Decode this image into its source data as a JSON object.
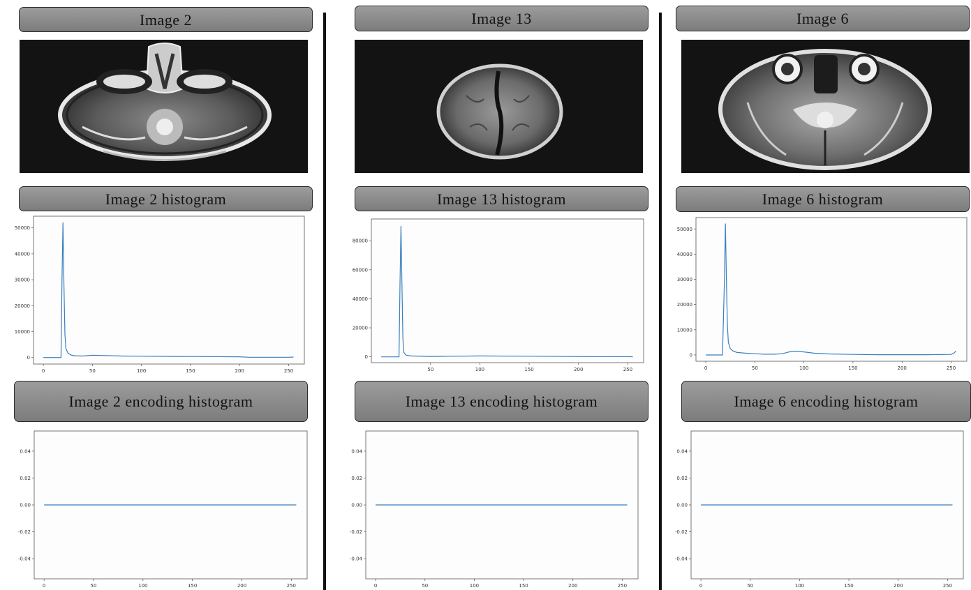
{
  "panels": [
    {
      "title": "Image 2",
      "hist_title": "Image 2 histogram",
      "enc_title": "Image 2 encoding histogram",
      "scan_type": "skull-base",
      "chart_data": [
        {
          "type": "line",
          "title": "Image 2 histogram",
          "x": [
            0,
            10,
            18,
            19,
            20,
            21,
            22,
            23,
            25,
            28,
            32,
            40,
            50,
            60,
            80,
            100,
            150,
            200,
            210,
            250,
            255
          ],
          "y": [
            0,
            0,
            0,
            30000,
            52000,
            28000,
            9000,
            3500,
            1800,
            1000,
            700,
            600,
            900,
            800,
            600,
            500,
            400,
            300,
            100,
            100,
            200
          ],
          "xticks": [
            0,
            50,
            100,
            150,
            200,
            250
          ],
          "yticks": [
            0,
            10000,
            20000,
            30000,
            40000,
            50000
          ],
          "xlim": [
            -10,
            266
          ],
          "ylim": [
            -2500,
            54500
          ],
          "line_color": "#3a7fc0",
          "grid": false
        },
        {
          "type": "line",
          "title": "Image 2 encoding histogram",
          "x": [
            0,
            255
          ],
          "y": [
            0,
            0
          ],
          "xticks": [
            0,
            50,
            100,
            150,
            200,
            250
          ],
          "yticks": [
            -0.04,
            -0.02,
            0.0,
            0.02,
            0.04
          ],
          "xlim": [
            -10,
            266
          ],
          "ylim": [
            -0.055,
            0.055
          ],
          "line_color": "#3a7fc0",
          "grid": false
        }
      ]
    },
    {
      "title": "Image 13",
      "hist_title": "Image 13 histogram",
      "enc_title": "Image 13 encoding histogram",
      "scan_type": "vertex",
      "chart_data": [
        {
          "type": "line",
          "title": "Image 13 histogram",
          "x": [
            0,
            10,
            18,
            19,
            20,
            21,
            22,
            23,
            25,
            30,
            50,
            100,
            150,
            200,
            255
          ],
          "y": [
            0,
            0,
            0,
            50000,
            90000,
            50000,
            12000,
            3000,
            1200,
            600,
            300,
            600,
            400,
            200,
            100
          ],
          "xticks": [
            50,
            100,
            150,
            200,
            250
          ],
          "yticks": [
            0,
            20000,
            40000,
            60000,
            80000
          ],
          "xlim": [
            -10,
            266
          ],
          "ylim": [
            -4000,
            95000
          ],
          "line_color": "#3a7fc0",
          "grid": false
        },
        {
          "type": "line",
          "title": "Image 13 encoding histogram",
          "x": [
            0,
            255
          ],
          "y": [
            0,
            0
          ],
          "xticks": [
            0,
            50,
            100,
            150,
            200,
            250
          ],
          "yticks": [
            -0.04,
            -0.02,
            0.0,
            0.02,
            0.04
          ],
          "xlim": [
            -10,
            266
          ],
          "ylim": [
            -0.055,
            0.055
          ],
          "line_color": "#3a7fc0",
          "grid": false
        }
      ]
    },
    {
      "title": "Image 6",
      "hist_title": "Image 6 histogram",
      "enc_title": "Image 6 encoding histogram",
      "scan_type": "mid-brain",
      "chart_data": [
        {
          "type": "line",
          "title": "Image 6 histogram",
          "x": [
            0,
            10,
            17,
            19,
            20,
            21,
            22,
            23,
            25,
            28,
            32,
            40,
            50,
            60,
            70,
            78,
            85,
            92,
            100,
            110,
            125,
            150,
            175,
            200,
            225,
            250,
            253,
            255
          ],
          "y": [
            0,
            0,
            0,
            30000,
            52000,
            30000,
            12000,
            5000,
            2500,
            1500,
            1000,
            700,
            500,
            300,
            300,
            500,
            1200,
            1500,
            1200,
            700,
            400,
            200,
            100,
            100,
            100,
            200,
            800,
            1500
          ],
          "xticks": [
            0,
            50,
            100,
            150,
            200,
            250
          ],
          "yticks": [
            0,
            10000,
            20000,
            30000,
            40000,
            50000
          ],
          "xlim": [
            -10,
            266
          ],
          "ylim": [
            -2500,
            54500
          ],
          "line_color": "#3a7fc0",
          "grid": false
        },
        {
          "type": "line",
          "title": "Image 6 encoding histogram",
          "x": [
            0,
            255
          ],
          "y": [
            0,
            0
          ],
          "xticks": [
            0,
            50,
            100,
            150,
            200,
            250
          ],
          "yticks": [
            -0.04,
            -0.02,
            0.0,
            0.02,
            0.04
          ],
          "xlim": [
            -10,
            266
          ],
          "ylim": [
            -0.055,
            0.055
          ],
          "line_color": "#3a7fc0",
          "grid": false
        }
      ]
    }
  ]
}
